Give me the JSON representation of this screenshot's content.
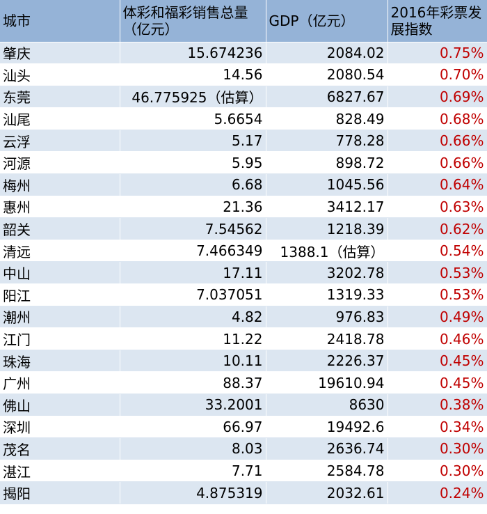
{
  "headers": {
    "city": "城市",
    "sales": "体彩和福彩销售总量（亿元）",
    "gdp": "GDP（亿元）",
    "index": "2016年彩票发展指数"
  },
  "colors": {
    "header_bg": "#95b3d7",
    "band_bg": "#dce6f1",
    "index_text": "#c00000"
  },
  "rows": [
    {
      "city": "肇庆",
      "sales": "15.674236",
      "gdp": "2084.02",
      "index": "0.75%"
    },
    {
      "city": "汕头",
      "sales": "14.56",
      "gdp": "2080.54",
      "index": "0.70%"
    },
    {
      "city": "东莞",
      "sales": "46.775925（估算）",
      "gdp": "6827.67",
      "index": "0.69%"
    },
    {
      "city": "汕尾",
      "sales": "5.6654",
      "gdp": "828.49",
      "index": "0.68%"
    },
    {
      "city": "云浮",
      "sales": "5.17",
      "gdp": "778.28",
      "index": "0.66%"
    },
    {
      "city": "河源",
      "sales": "5.95",
      "gdp": "898.72",
      "index": "0.66%"
    },
    {
      "city": "梅州",
      "sales": "6.68",
      "gdp": "1045.56",
      "index": "0.64%"
    },
    {
      "city": "惠州",
      "sales": "21.36",
      "gdp": "3412.17",
      "index": "0.63%"
    },
    {
      "city": "韶关",
      "sales": "7.54562",
      "gdp": "1218.39",
      "index": "0.62%"
    },
    {
      "city": "清远",
      "sales": "7.466349",
      "gdp": "1388.1（估算）",
      "index": "0.54%"
    },
    {
      "city": "中山",
      "sales": "17.11",
      "gdp": "3202.78",
      "index": "0.53%"
    },
    {
      "city": "阳江",
      "sales": "7.037051",
      "gdp": "1319.33",
      "index": "0.53%"
    },
    {
      "city": "潮州",
      "sales": "4.82",
      "gdp": "976.83",
      "index": "0.49%"
    },
    {
      "city": "江门",
      "sales": "11.22",
      "gdp": "2418.78",
      "index": "0.46%"
    },
    {
      "city": "珠海",
      "sales": "10.11",
      "gdp": "2226.37",
      "index": "0.45%"
    },
    {
      "city": "广州",
      "sales": "88.37",
      "gdp": "19610.94",
      "index": "0.45%"
    },
    {
      "city": "佛山",
      "sales": "33.2001",
      "gdp": "8630",
      "index": "0.38%"
    },
    {
      "city": "深圳",
      "sales": "66.97",
      "gdp": "19492.6",
      "index": "0.34%"
    },
    {
      "city": "茂名",
      "sales": "8.03",
      "gdp": "2636.74",
      "index": "0.30%"
    },
    {
      "city": "湛江",
      "sales": "7.71",
      "gdp": "2584.78",
      "index": "0.30%"
    },
    {
      "city": "揭阳",
      "sales": "4.875319",
      "gdp": "2032.61",
      "index": "0.24%"
    }
  ]
}
